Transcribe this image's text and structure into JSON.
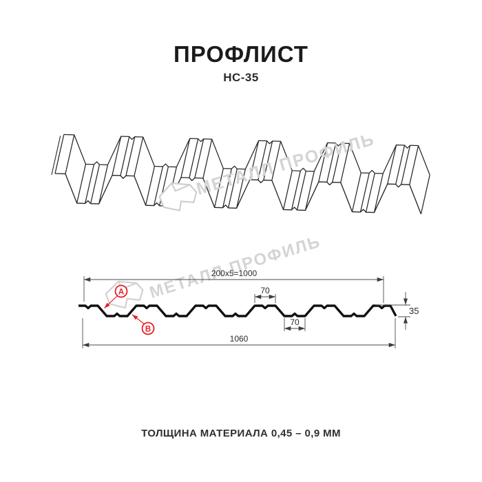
{
  "header": {
    "title": "ПРОФЛИСТ",
    "subtitle": "НС-35"
  },
  "footer": {
    "text": "ТОЛЩИНА МАТЕРИАЛА 0,45 – 0,9 ММ"
  },
  "brand": {
    "watermark_text": "МЕТАЛЛ ПРОФИЛЬ",
    "watermark_color": "#d4d4d4",
    "logo_name": "metall-profil-folded-sheet-logo"
  },
  "drawing": {
    "kind": "corrugated-profile-sheet-technical-diagram",
    "product": "НС-35",
    "dimensions": {
      "module_width": "200x5=1000",
      "crest_top_width": "70",
      "valley_bottom_width": "70",
      "profile_height": "35",
      "total_width": "1060"
    },
    "callouts": [
      {
        "label": "A"
      },
      {
        "label": "B"
      }
    ],
    "accent_color": "#e31e24"
  }
}
